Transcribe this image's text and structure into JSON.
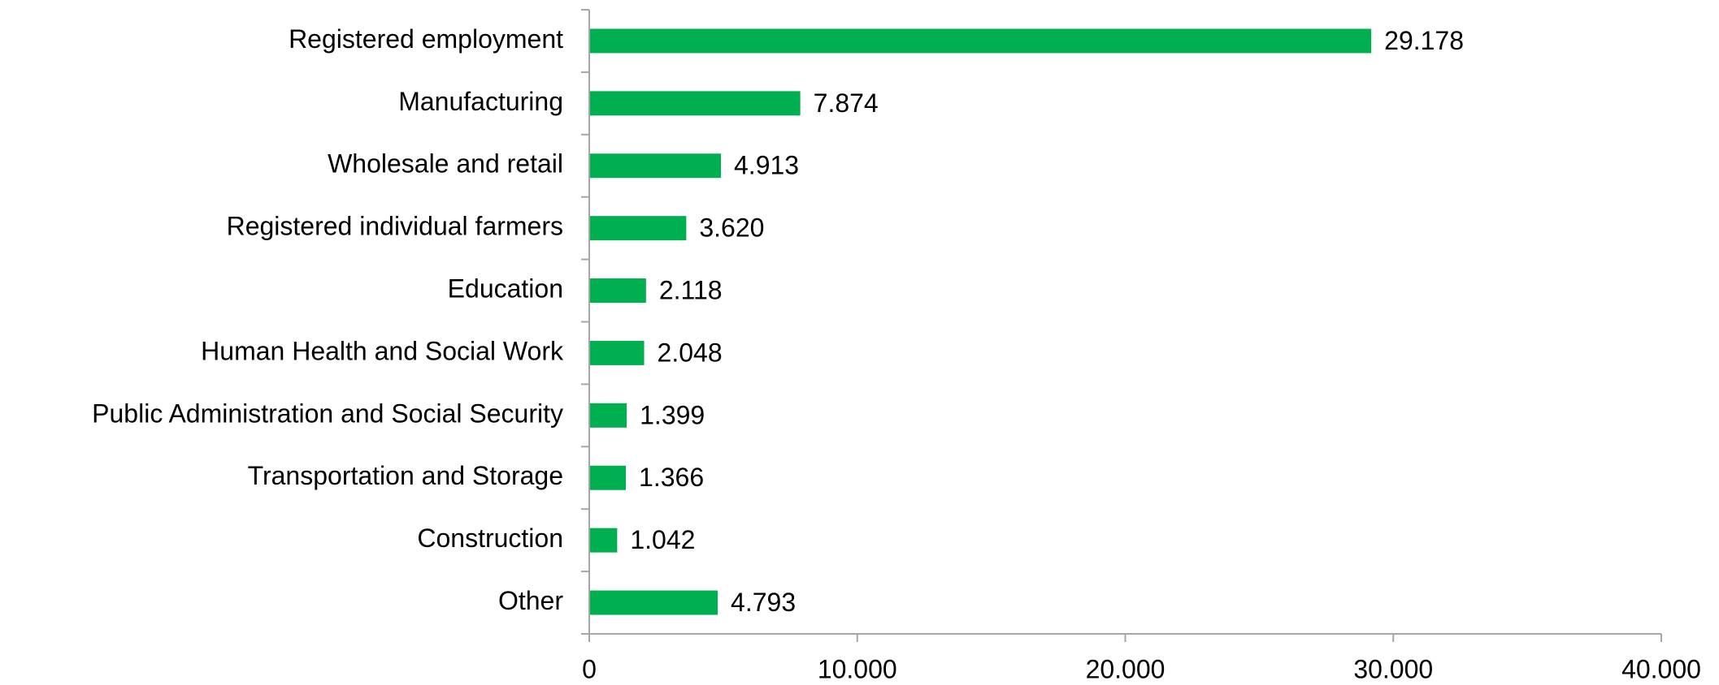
{
  "chart_data": {
    "type": "bar",
    "orientation": "horizontal",
    "categories": [
      "Registered employment",
      "Manufacturing",
      "Wholesale and retail",
      "Registered individual farmers",
      "Education",
      "Human Health and Social Work",
      "Public Administration and Social Security",
      "Transportation and Storage",
      "Construction",
      "Other"
    ],
    "values": [
      29178,
      7874,
      4913,
      3620,
      2118,
      2048,
      1399,
      1366,
      1042,
      4793
    ],
    "value_labels": [
      "29.178",
      "7.874",
      "4.913",
      "3.620",
      "2.118",
      "2.048",
      "1.399",
      "1.366",
      "1.042",
      "4.793"
    ],
    "xlim": [
      0,
      40000
    ],
    "xticks": [
      0,
      10000,
      20000,
      30000,
      40000
    ],
    "xtick_labels": [
      "0",
      "10.000",
      "20.000",
      "30.000",
      "40.000"
    ],
    "bar_color": "#00b050",
    "axis_color": "#a6a6a6",
    "grid": false,
    "legend": "none"
  }
}
